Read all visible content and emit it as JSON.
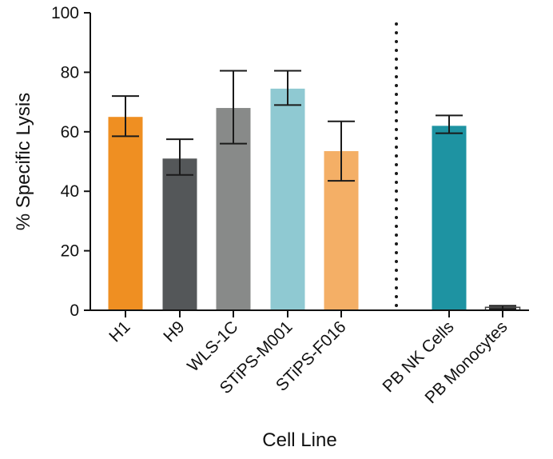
{
  "chart_data": {
    "type": "bar",
    "title": "",
    "xlabel": "Cell Line",
    "ylabel": "% Specific Lysis",
    "ylim": [
      0,
      100
    ],
    "yticks": [
      0,
      20,
      40,
      60,
      80,
      100
    ],
    "grid": false,
    "legend": "none",
    "categories": [
      "H1",
      "H9",
      "WLS-1C",
      "STiPS-M001",
      "STiPS-F016",
      "PB NK Cells",
      "PB Monocytes"
    ],
    "values": [
      65,
      51,
      68,
      74.5,
      53.5,
      62,
      1
    ],
    "error_low": [
      58.5,
      45.5,
      56,
      69,
      43.5,
      59.5,
      0.5
    ],
    "error_high": [
      72,
      57.5,
      80.5,
      80.5,
      63.5,
      65.5,
      1.5
    ],
    "colors": [
      "#ef8f22",
      "#545759",
      "#888a89",
      "#8fc9d2",
      "#f4af66",
      "#1e93a2",
      "#ffffff"
    ],
    "separator": "dotted vertical line between STiPS-F016 and PB NK Cells"
  }
}
